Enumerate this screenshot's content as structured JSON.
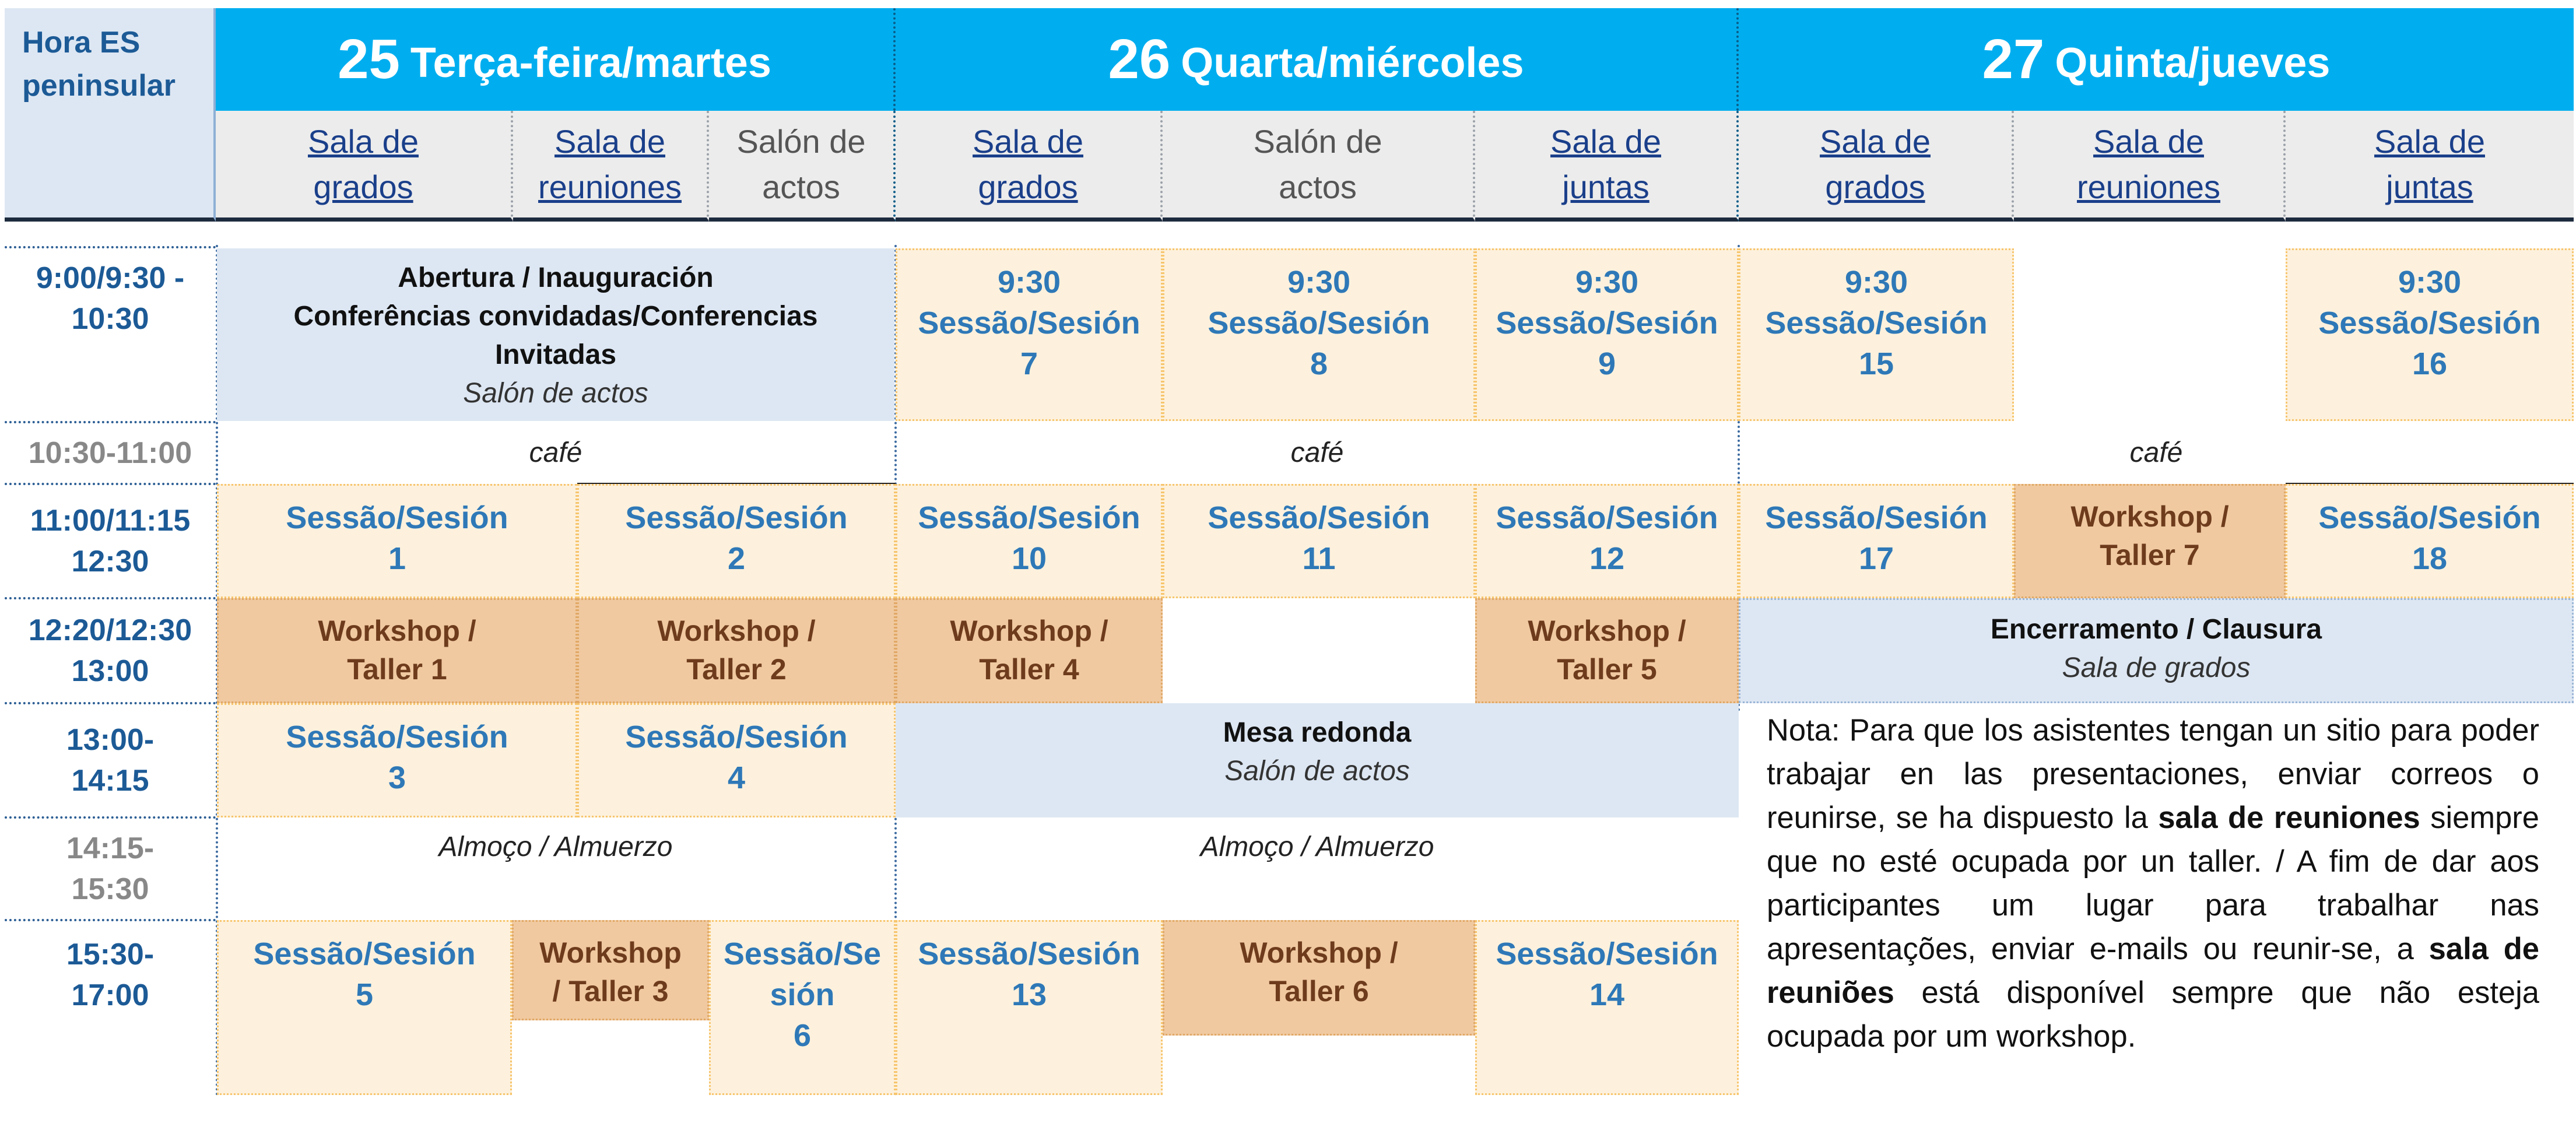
{
  "corner_label": "Hora ES\npeninsular",
  "days": [
    {
      "num": "25",
      "label": "Terça-feira/martes"
    },
    {
      "num": "26",
      "label": "Quarta/miércoles"
    },
    {
      "num": "27",
      "label": "Quinta/jueves"
    }
  ],
  "rooms": [
    "Sala de\ngrados",
    "Sala de\nreuniones",
    "Salón de\nactos",
    "Sala de\ngrados",
    "Salón de\nactos",
    "Sala de\njuntas",
    "Sala de\ngrados",
    "Sala de\nreuniones",
    "Sala de\njuntas"
  ],
  "times": [
    "9:00/9:30 -\n10:30",
    "10:30-11:00",
    "11:00/11:15\n12:30",
    "12:20/12:30\n13:00",
    "13:00-\n14:15",
    "14:15-\n15:30",
    "15:30-\n17:00"
  ],
  "opening": {
    "title": "Abertura / Inauguración\nConferências convidadas/Conferencias\nInvitadas",
    "place": "Salón de actos"
  },
  "sessions": {
    "s930_7": "9:30\nSessão/Sesión\n7",
    "s930_8": "9:30\nSessão/Sesión\n8",
    "s930_9": "9:30\nSessão/Sesión\n9",
    "s930_15": "9:30\nSessão/Sesión\n15",
    "s930_16": "9:30\nSessão/Sesión\n16",
    "s1": "Sessão/Sesión\n1",
    "s2": "Sessão/Sesión\n2",
    "s10": "Sessão/Sesión\n10",
    "s11": "Sessão/Sesión\n11",
    "s12": "Sessão/Sesión\n12",
    "s17": "Sessão/Sesión\n17",
    "s18": "Sessão/Sesión\n18",
    "s3": "Sessão/Sesión\n3",
    "s4": "Sessão/Sesión\n4",
    "s5": "Sessão/Sesión\n5",
    "s6": "Sessão/Se\nsión\n6",
    "s13": "Sessão/Sesión\n13",
    "s14": "Sessão/Sesión\n14"
  },
  "workshops": {
    "w1": "Workshop /\nTaller 1",
    "w2": "Workshop /\nTaller 2",
    "w3": "Workshop\n/ Taller 3",
    "w4": "Workshop /\nTaller 4",
    "w5": "Workshop /\nTaller 5",
    "w6": "Workshop /\nTaller 6",
    "w7": "Workshop /\nTaller 7"
  },
  "coffee": "café",
  "lunch": "Almoço / Almuerzo",
  "closing": {
    "title": "Encerramento / Clausura",
    "place": "Sala de grados"
  },
  "round_table": {
    "title": "Mesa redonda",
    "place": "Salón de actos"
  },
  "note": {
    "p1": "Nota: Para que los asistentes tengan un sitio para poder trabajar en las presentaciones, enviar correos o reunirse, se ha dispuesto la ",
    "b1": "sala de reuniones",
    "p2": " siempre que no esté ocupada por un taller. / A fim de dar aos participantes um lugar para trabalhar nas apresentações, enviar e-mails ou reunir-se, a ",
    "b2": "sala de reuniões",
    "p3": " está disponível sempre que não esteja ocupada por um workshop."
  }
}
